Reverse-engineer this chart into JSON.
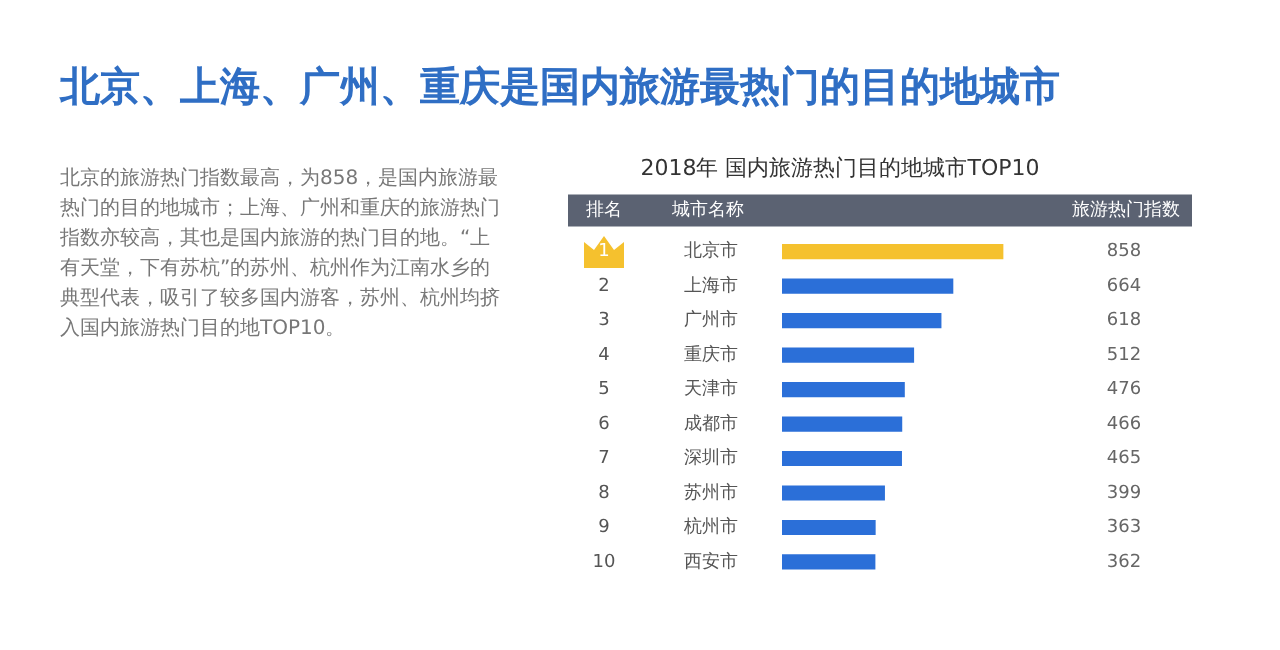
{
  "chart_data": {
    "type": "bar",
    "orientation": "horizontal",
    "title": "北京、上海、广州、重庆是国内旅游最热门的目的地城市",
    "subtitle": "2018年 国内旅游热门目的地城市TOP10",
    "categories": [
      "北京市",
      "上海市",
      "广州市",
      "重庆市",
      "天津市",
      "成都市",
      "深圳市",
      "苏州市",
      "杭州市",
      "西安市"
    ],
    "values": [
      858,
      664,
      618,
      512,
      476,
      466,
      465,
      399,
      363,
      362
    ],
    "colors": [
      "#f5c12e",
      "#2b6fd8",
      "#2b6fd8",
      "#2b6fd8",
      "#2b6fd8",
      "#2b6fd8",
      "#2b6fd8",
      "#2b6fd8",
      "#2b6fd8",
      "#2b6fd8"
    ],
    "data_labels": true,
    "tick_labels": "y",
    "grid": false,
    "legend": false,
    "annotations": [
      "北京的旅游热门指数最高，为858，是国内旅游最热门的目的地城市；上海、广州和重庆的旅游热门指数亦较高，其也是国内旅游的热门目的地。“上有天堂，下有苏杭”的苏州、杭州作为江南水乡的典型代表，吸引了较多国内游客，苏州、杭州均挤入国内旅游热门目的地TOP10。",
      "排名",
      "城市名称",
      "旅游热门指数",
      "1",
      "2",
      "3",
      "4",
      "5",
      "6",
      "7",
      "8",
      "9",
      "10"
    ]
  }
}
